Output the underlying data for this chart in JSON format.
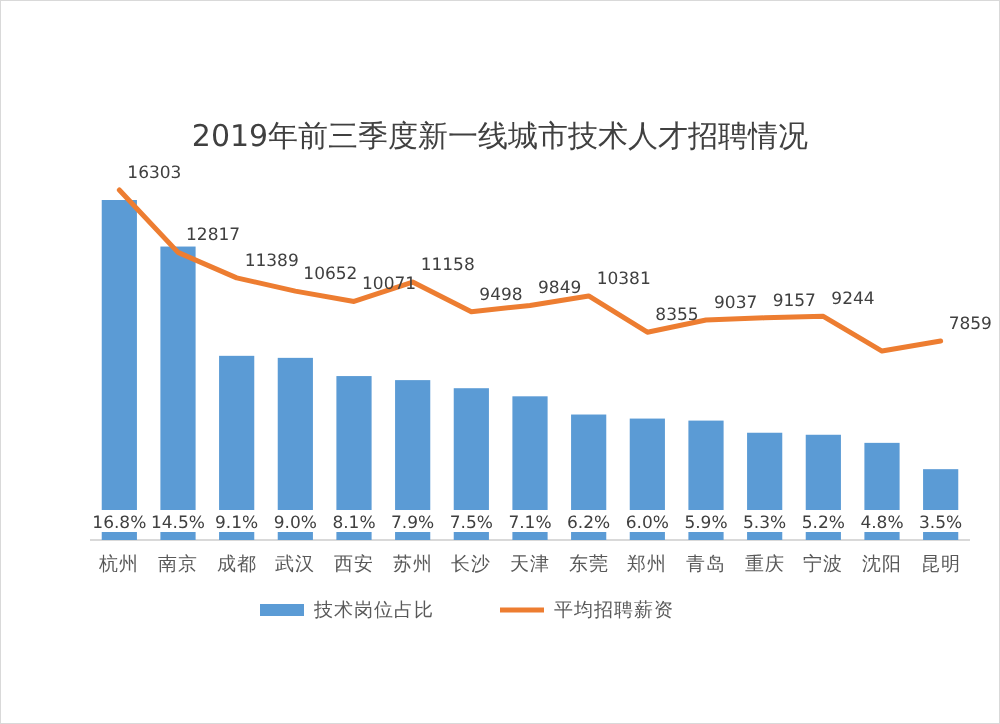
{
  "chart_data": {
    "type": "bar",
    "title": "2019年前三季度新一线城市技术人才招聘情况",
    "categories": [
      "杭州",
      "南京",
      "成都",
      "武汉",
      "西安",
      "苏州",
      "长沙",
      "天津",
      "东莞",
      "郑州",
      "青岛",
      "重庆",
      "宁波",
      "沈阳",
      "昆明"
    ],
    "series": [
      {
        "name": "技术岗位占比",
        "color": "#5b9bd5",
        "values": [
          16.8,
          14.5,
          9.1,
          9.0,
          8.1,
          7.9,
          7.5,
          7.1,
          6.2,
          6.0,
          5.9,
          5.3,
          5.2,
          4.8,
          3.5
        ],
        "value_labels": [
          "16.8%",
          "14.5%",
          "9.1%",
          "9.0%",
          "8.1%",
          "7.9%",
          "7.5%",
          "7.1%",
          "6.2%",
          "6.0%",
          "5.9%",
          "5.3%",
          "5.2%",
          "4.8%",
          "3.5%"
        ]
      },
      {
        "name": "平均招聘薪资",
        "type": "line",
        "axis": "y2",
        "color": "#ed7d31",
        "values": [
          16303,
          12817,
          11389,
          10652,
          10071,
          11158,
          9498,
          9849,
          10381,
          8355,
          9037,
          9157,
          9244,
          7300,
          7859
        ],
        "value_labels": [
          "16303",
          "12817",
          "11389",
          "10652",
          "10071",
          "11158",
          "9498",
          "9849",
          "10381",
          "8355",
          "9037",
          "9157",
          "9244",
          null,
          "7859"
        ]
      }
    ],
    "legend": "bottom"
  }
}
